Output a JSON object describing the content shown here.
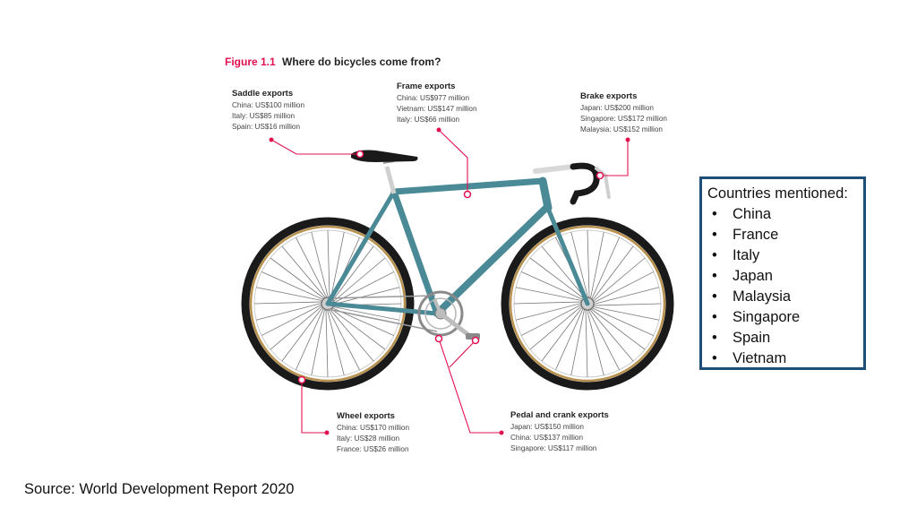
{
  "figure": {
    "number": "Figure 1.1",
    "title": "Where do bicycles come from?"
  },
  "callouts": {
    "saddle": {
      "title": "Saddle exports",
      "lines": [
        "China: US$100 million",
        "Italy: US$85 million",
        "Spain: US$16 million"
      ]
    },
    "frame": {
      "title": "Frame exports",
      "lines": [
        "China: US$977 million",
        "Vietnam: US$147 million",
        "Italy: US$66 million"
      ]
    },
    "brake": {
      "title": "Brake exports",
      "lines": [
        "Japan: US$200 million",
        "Singapore: US$172 million",
        "Malaysia: US$152 million"
      ]
    },
    "wheel": {
      "title": "Wheel exports",
      "lines": [
        "China: US$170 million",
        "Italy: US$28 million",
        "France: US$26 million"
      ]
    },
    "pedal": {
      "title": "Pedal and crank exports",
      "lines": [
        "Japan: US$150 million",
        "China: US$137 million",
        "Singapore: US$117 million"
      ]
    }
  },
  "countries": {
    "title": "Countries mentioned:",
    "items": [
      "China",
      "France",
      "Italy",
      "Japan",
      "Malaysia",
      "Singapore",
      "Spain",
      "Vietnam"
    ]
  },
  "source": "Source:  World Development Report 2020",
  "colors": {
    "accent": "#e2104f",
    "frame": "#4a8a96",
    "tire": "#1a1a1a",
    "rim": "#b8914e",
    "box_border": "#1f4e79"
  }
}
